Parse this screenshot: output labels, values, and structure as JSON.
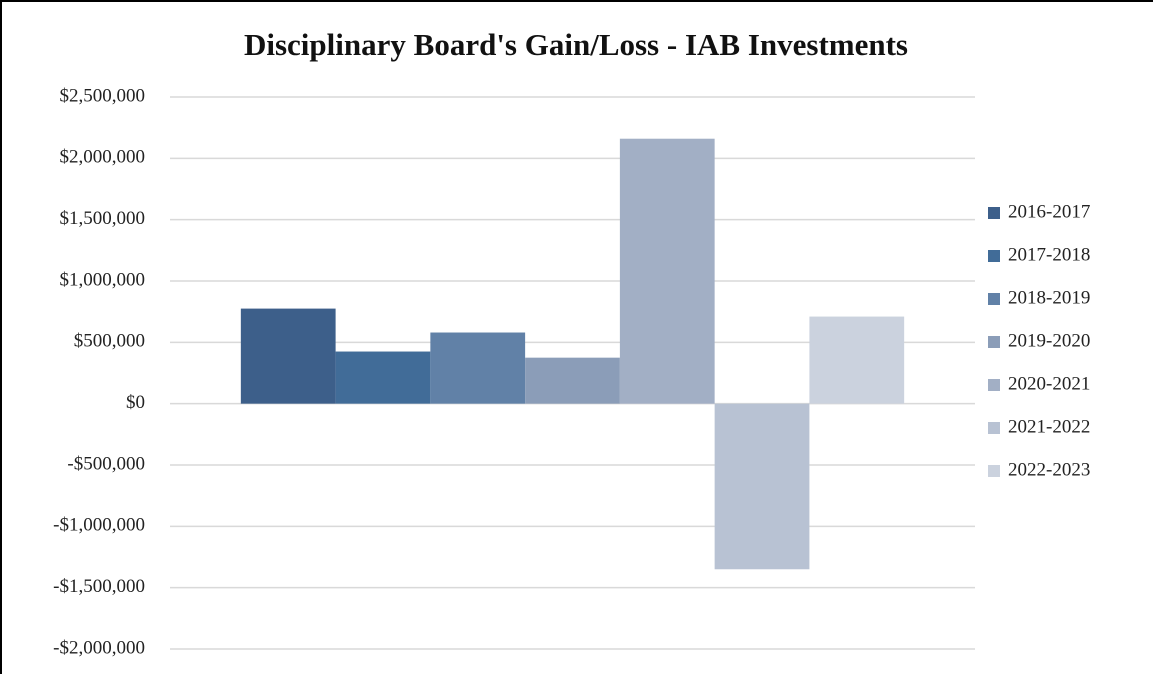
{
  "chart_data": {
    "type": "bar",
    "title": "Disciplinary Board's Gain/Loss - IAB Investments",
    "categories": [
      null
    ],
    "series": [
      {
        "name": "2016-2017",
        "color": "#3d5f8a",
        "values": [
          775000
        ]
      },
      {
        "name": "2017-2018",
        "color": "#416c98",
        "values": [
          425000
        ]
      },
      {
        "name": "2018-2019",
        "color": "#6181a7",
        "values": [
          580000
        ]
      },
      {
        "name": "2019-2020",
        "color": "#8b9db8",
        "values": [
          375000
        ]
      },
      {
        "name": "2020-2021",
        "color": "#a2afc5",
        "values": [
          2160000
        ]
      },
      {
        "name": "2021-2022",
        "color": "#b8c2d3",
        "values": [
          -1350000
        ]
      },
      {
        "name": "2022-2023",
        "color": "#cbd2de",
        "values": [
          710000
        ]
      }
    ],
    "ylim": [
      -2000000,
      2500000
    ],
    "yticks": [
      {
        "value": -2000000,
        "label": "-$2,000,000"
      },
      {
        "value": -1500000,
        "label": "-$1,500,000"
      },
      {
        "value": -1000000,
        "label": "-$1,000,000"
      },
      {
        "value": -500000,
        "label": "-$500,000"
      },
      {
        "value": 0,
        "label": "$0"
      },
      {
        "value": 500000,
        "label": "$500,000"
      },
      {
        "value": 1000000,
        "label": "$1,000,000"
      },
      {
        "value": 1500000,
        "label": "$1,500,000"
      },
      {
        "value": 2000000,
        "label": "$2,000,000"
      },
      {
        "value": 2500000,
        "label": "$2,500,000"
      }
    ],
    "grid": true,
    "legend": "right"
  }
}
